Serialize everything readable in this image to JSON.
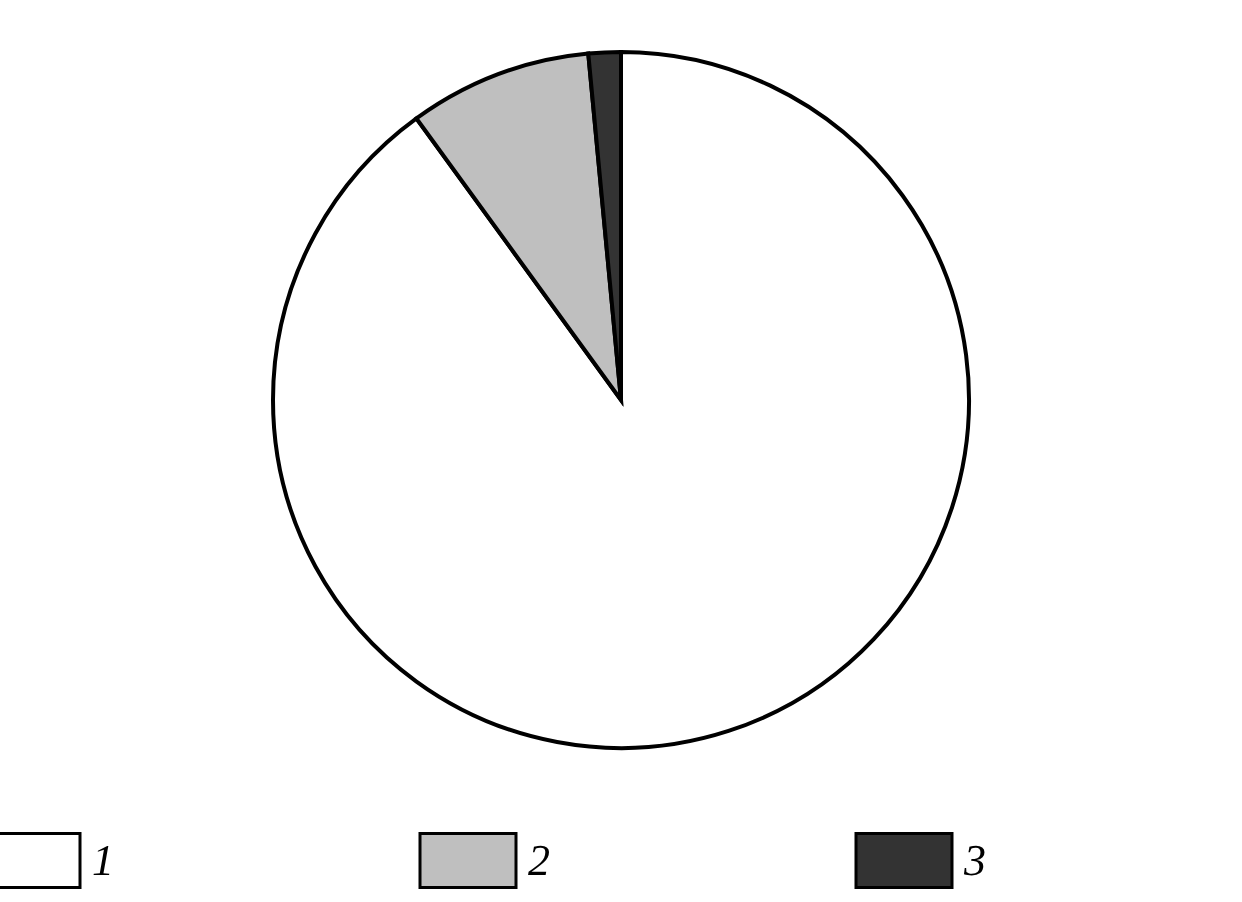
{
  "chart_data": {
    "type": "pie",
    "categories": [
      "1",
      "2",
      "3"
    ],
    "values": [
      90,
      8.5,
      1.5
    ],
    "colors": [
      "#ffffff",
      "#bfbfbf",
      "#333333"
    ],
    "legend": "bottom"
  }
}
